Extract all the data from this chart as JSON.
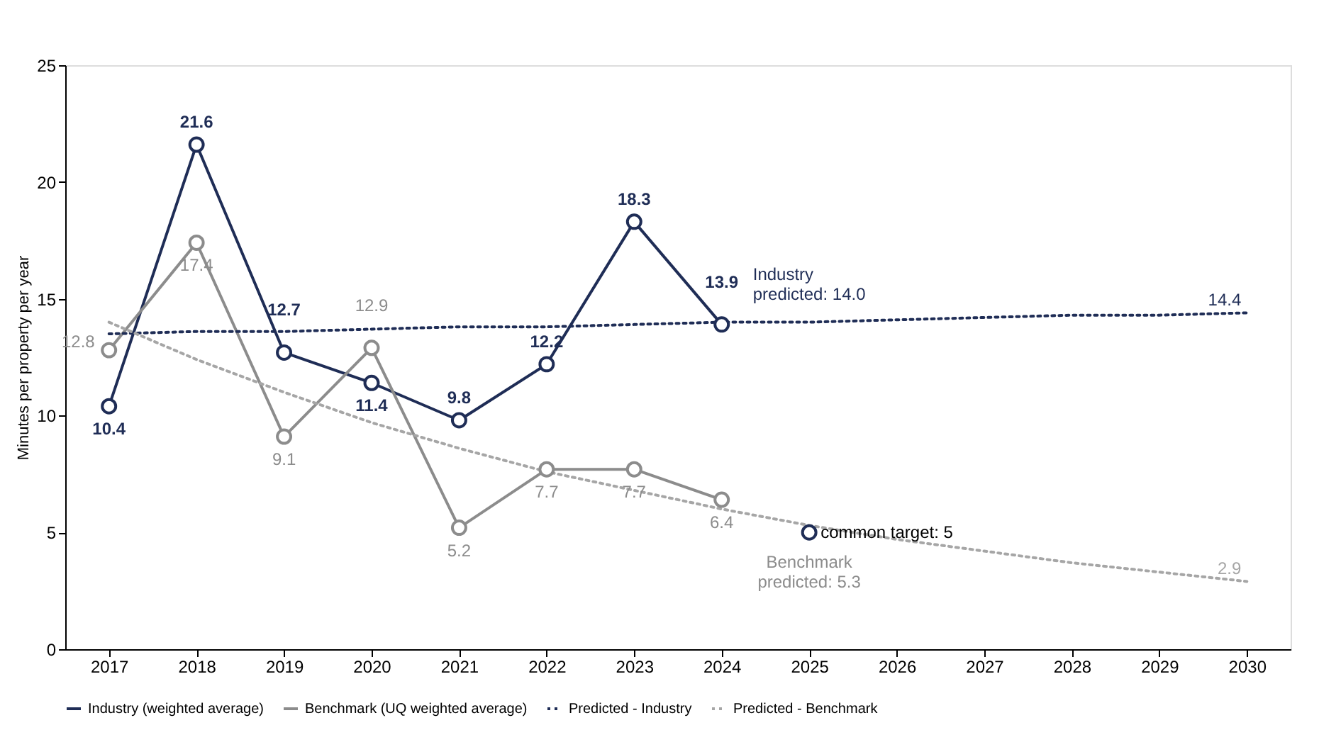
{
  "chart_data": {
    "type": "line",
    "ylabel": "Minutes per property per year",
    "categories": [
      "2017",
      "2018",
      "2019",
      "2020",
      "2021",
      "2022",
      "2023",
      "2024",
      "2025",
      "2026",
      "2027",
      "2028",
      "2029",
      "2030"
    ],
    "ylim": [
      0,
      25
    ],
    "yticks": [
      0,
      5,
      10,
      15,
      20,
      25
    ],
    "grid": false,
    "legend": "bottom",
    "series": [
      {
        "name": "Industry (weighted average)",
        "color": "#1f2d56",
        "marker": "circle",
        "line_style": "solid",
        "values": [
          10.4,
          21.6,
          12.7,
          11.4,
          9.8,
          12.2,
          18.3,
          13.9,
          null,
          null,
          null,
          null,
          null,
          null
        ],
        "value_labels": [
          "10.4",
          "21.6",
          "12.7",
          "11.4",
          "9.8",
          "12.2",
          "18.3",
          "13.9",
          null,
          null,
          null,
          null,
          null,
          null
        ]
      },
      {
        "name": "Benchmark (UQ weighted average)",
        "color": "#8c8c8c",
        "marker": "circle",
        "line_style": "solid",
        "values": [
          12.8,
          17.4,
          9.1,
          12.9,
          5.2,
          7.7,
          7.7,
          6.4,
          null,
          null,
          null,
          null,
          null,
          null
        ],
        "value_labels": [
          "12.8",
          "17.4",
          "9.1",
          "12.9",
          "5.2",
          "7.7",
          "7.7",
          "6.4",
          null,
          null,
          null,
          null,
          null,
          null
        ]
      },
      {
        "name": "Predicted - Industry",
        "color": "#1f2d56",
        "marker": "none",
        "line_style": "dotted",
        "values": [
          13.5,
          13.6,
          13.6,
          13.7,
          13.8,
          13.8,
          13.9,
          14.0,
          14.0,
          14.1,
          14.2,
          14.3,
          14.3,
          14.4
        ],
        "value_labels": [
          null,
          null,
          null,
          null,
          null,
          null,
          null,
          null,
          null,
          null,
          null,
          null,
          null,
          "14.4"
        ]
      },
      {
        "name": "Predicted - Benchmark",
        "color": "#a6a6a6",
        "marker": "none",
        "line_style": "dotted",
        "values": [
          14.0,
          12.4,
          11.0,
          9.7,
          8.6,
          7.6,
          6.8,
          6.0,
          5.3,
          4.7,
          4.2,
          3.7,
          3.3,
          2.9
        ],
        "value_labels": [
          null,
          null,
          null,
          null,
          null,
          null,
          null,
          null,
          null,
          null,
          null,
          null,
          null,
          "2.9"
        ]
      },
      {
        "type": "scatter",
        "color": "#1f2d56",
        "marker": "circle",
        "values": [
          null,
          null,
          null,
          null,
          null,
          null,
          null,
          null,
          5,
          null,
          null,
          null,
          null,
          null
        ]
      }
    ],
    "annotations": [
      {
        "text": "common target: 5",
        "x": "2025",
        "y": 5
      },
      {
        "text": "Industry\npredicted: 14.0",
        "x": "2024",
        "y": 14.0
      },
      {
        "text": "Benchmark\npredicted: 5.3",
        "x": "2025",
        "y": 5.3
      }
    ]
  }
}
